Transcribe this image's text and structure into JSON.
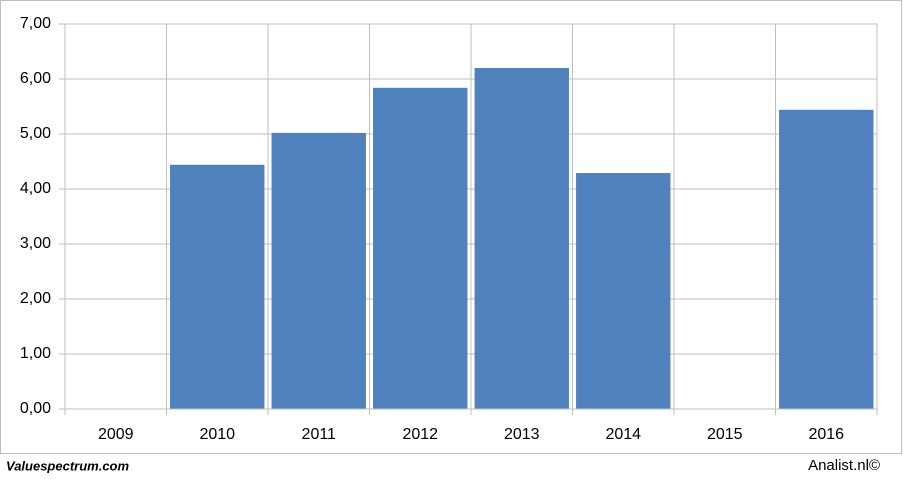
{
  "chart_data": {
    "type": "bar",
    "categories": [
      "2009",
      "2010",
      "2011",
      "2012",
      "2013",
      "2014",
      "2015",
      "2016"
    ],
    "values": [
      null,
      4.44,
      5.02,
      5.84,
      6.2,
      4.29,
      null,
      5.44
    ],
    "color": "#4f81bd",
    "ylim": [
      0,
      7
    ],
    "yticks": [
      {
        "value": 0,
        "label": "0,00"
      },
      {
        "value": 1,
        "label": "1,00"
      },
      {
        "value": 2,
        "label": "2,00"
      },
      {
        "value": 3,
        "label": "3,00"
      },
      {
        "value": 4,
        "label": "4,00"
      },
      {
        "value": 5,
        "label": "5,00"
      },
      {
        "value": 6,
        "label": "6,00"
      },
      {
        "value": 7,
        "label": "7,00"
      }
    ],
    "grid": true,
    "source_left": "Valuespectrum.com",
    "source_right": "Analist.nl©"
  }
}
